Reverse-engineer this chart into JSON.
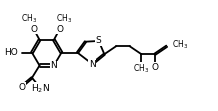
{
  "bg_color": "#ffffff",
  "line_color": "#000000",
  "line_width": 1.3,
  "font_size": 6.5,
  "figsize": [
    2.18,
    1.11
  ],
  "dpi": 100,
  "xlim": [
    0,
    11.0
  ],
  "ylim": [
    0,
    5.8
  ]
}
